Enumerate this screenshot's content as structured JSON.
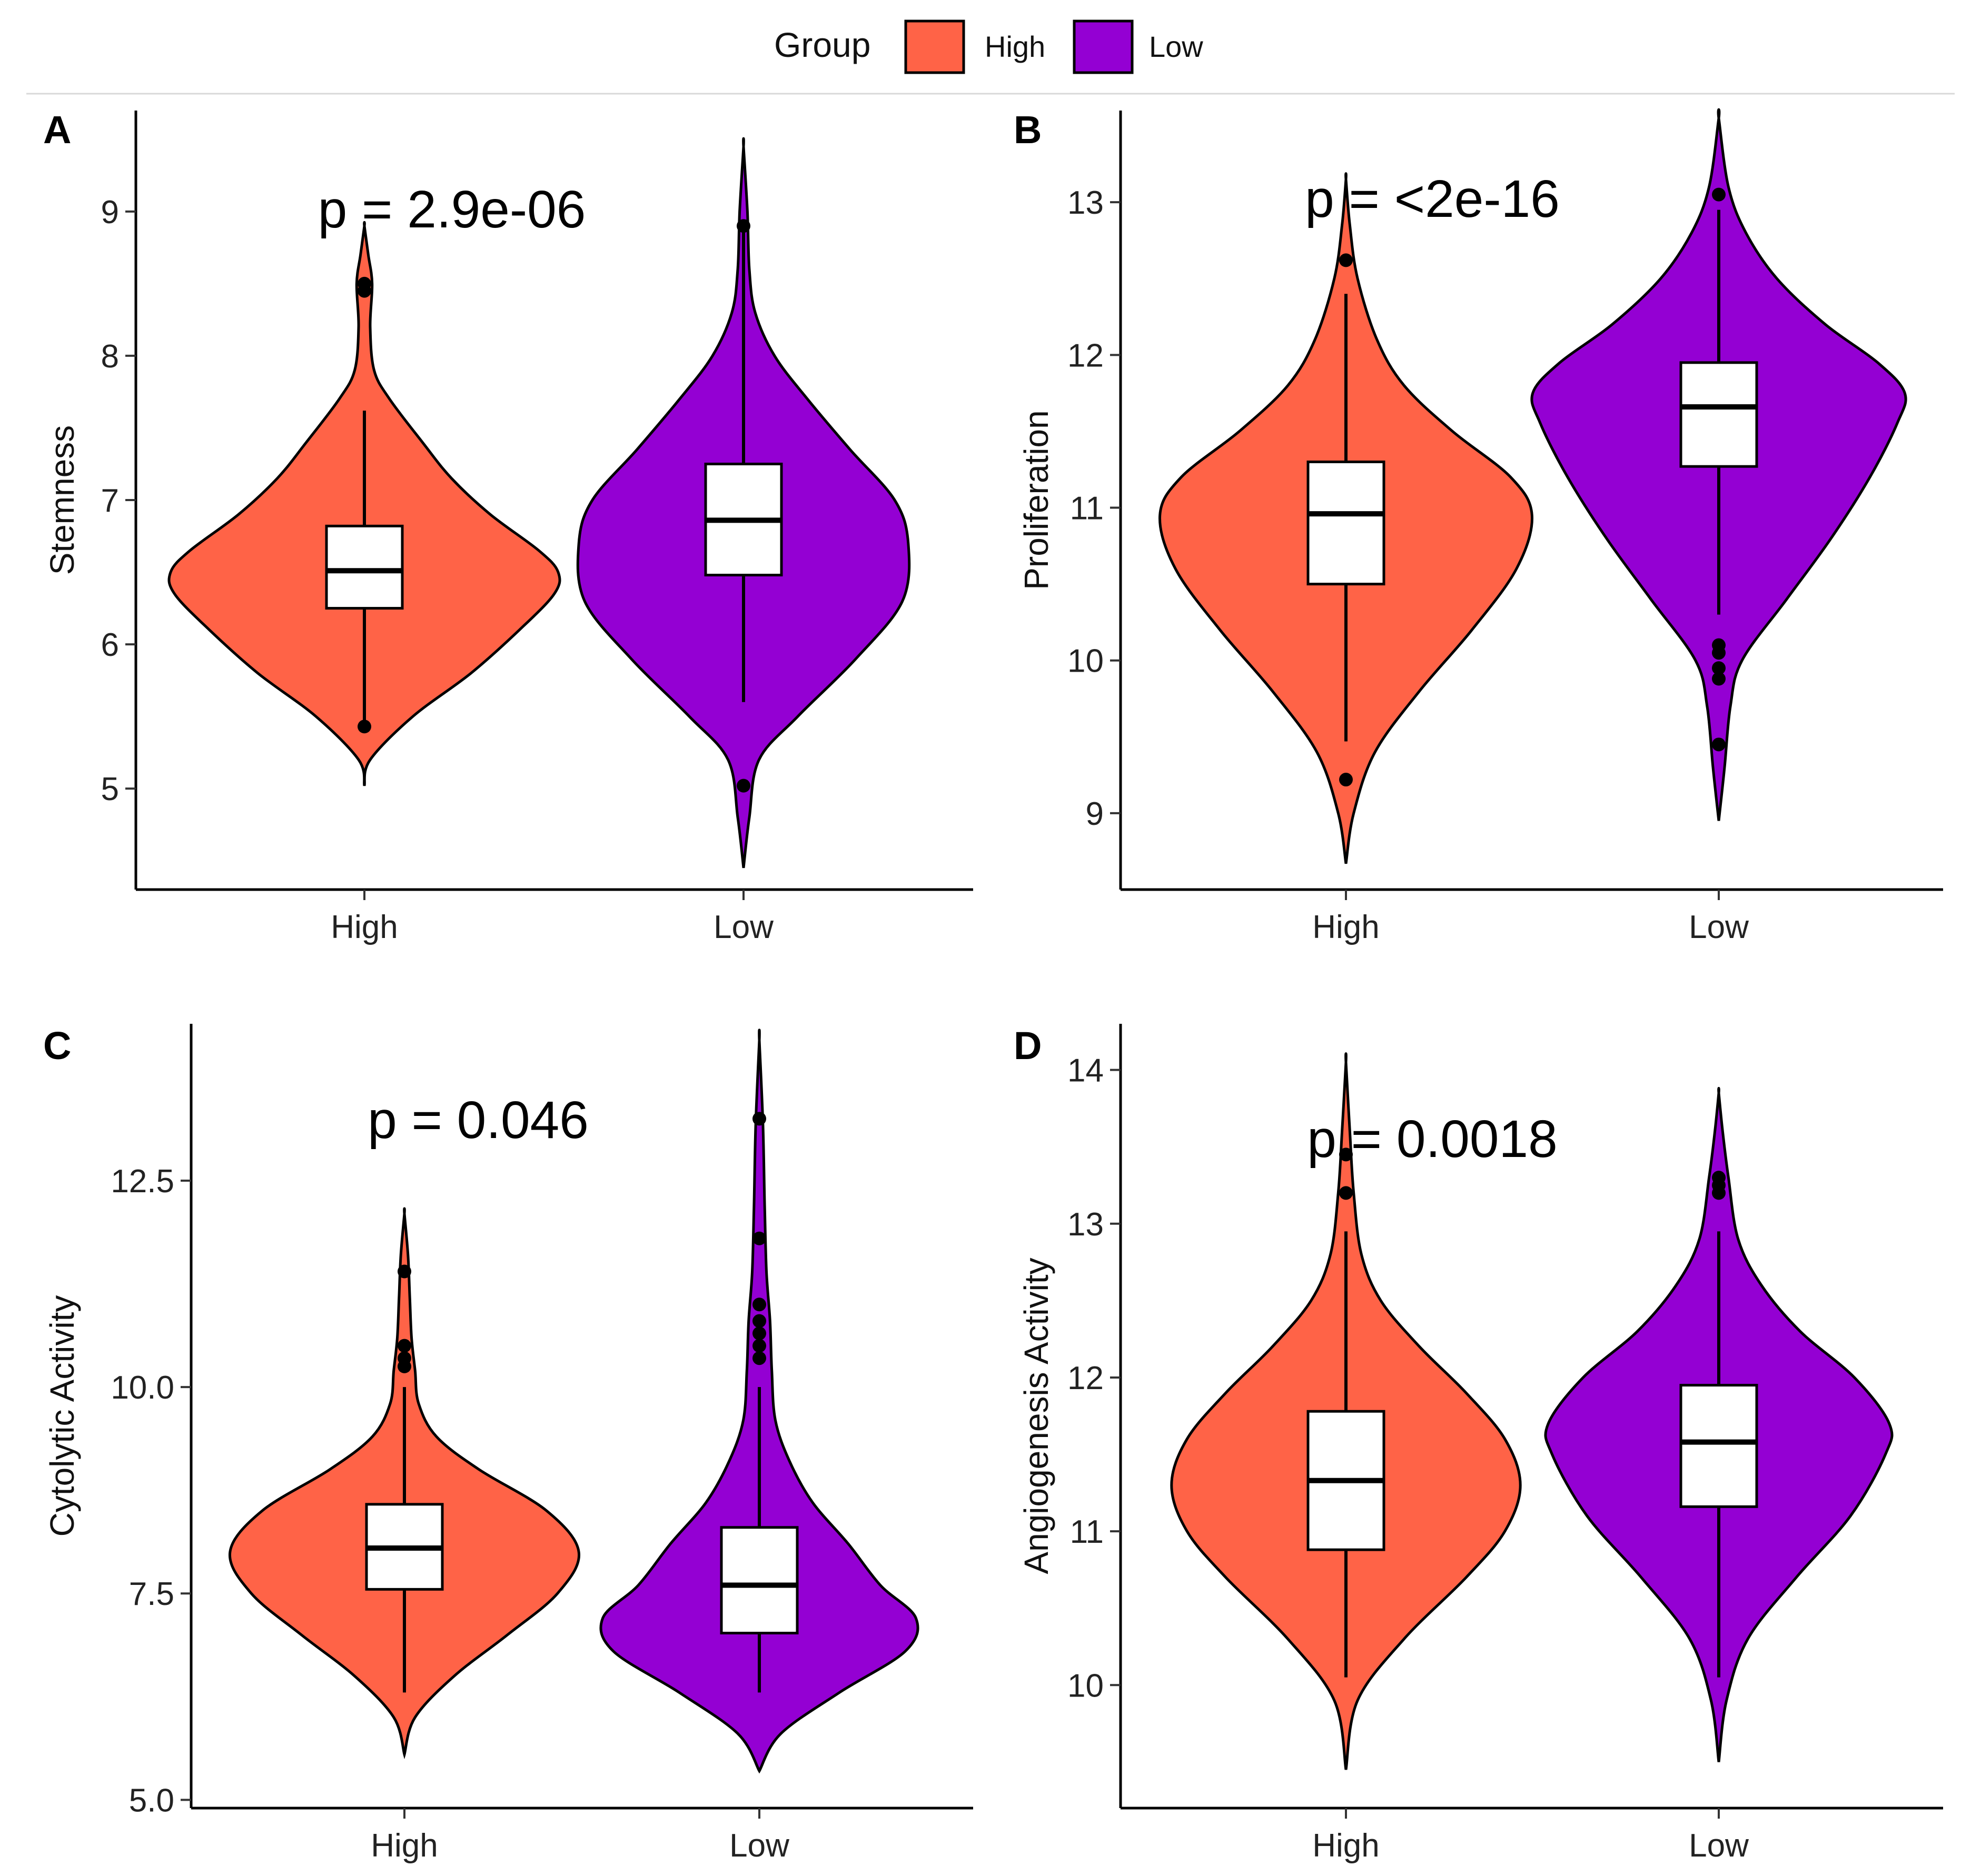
{
  "legend": {
    "title": "Group",
    "items": [
      {
        "label": "High",
        "color": "#FF6347"
      },
      {
        "label": "Low",
        "color": "#9400D3"
      }
    ]
  },
  "chart_data": [
    {
      "type": "violin",
      "panel": "A",
      "ylabel": "Stemness",
      "ylim": [
        4.3,
        9.7
      ],
      "yticks": [
        "5",
        "6",
        "7",
        "8",
        "9"
      ],
      "p_label": "p = 2.9e-06",
      "categories": [
        "High",
        "Low"
      ],
      "series": [
        {
          "name": "High",
          "color": "#FF6347",
          "box": {
            "q1": 6.25,
            "median": 6.51,
            "q3": 6.82,
            "whisker_low": 5.43,
            "whisker_high": 7.62
          },
          "outliers": [
            5.43,
            8.45,
            8.5
          ],
          "violin": [
            [
              5.02,
              0
            ],
            [
              5.2,
              0.03
            ],
            [
              5.5,
              0.25
            ],
            [
              5.8,
              0.55
            ],
            [
              6.1,
              0.8
            ],
            [
              6.35,
              0.98
            ],
            [
              6.5,
              1.0
            ],
            [
              6.65,
              0.9
            ],
            [
              6.9,
              0.65
            ],
            [
              7.15,
              0.45
            ],
            [
              7.4,
              0.3
            ],
            [
              7.7,
              0.13
            ],
            [
              7.9,
              0.05
            ],
            [
              8.2,
              0.03
            ],
            [
              8.5,
              0.04
            ],
            [
              8.7,
              0.02
            ],
            [
              8.9,
              0
            ]
          ]
        },
        {
          "name": "Low",
          "color": "#9400D3",
          "box": {
            "q1": 6.48,
            "median": 6.86,
            "q3": 7.25,
            "whisker_low": 5.6,
            "whisker_high": 8.9
          },
          "outliers": [
            5.02,
            8.9
          ],
          "violin": [
            [
              4.45,
              0
            ],
            [
              4.8,
              0.03
            ],
            [
              5.2,
              0.08
            ],
            [
              5.5,
              0.28
            ],
            [
              5.9,
              0.58
            ],
            [
              6.3,
              0.82
            ],
            [
              6.7,
              0.85
            ],
            [
              7.0,
              0.78
            ],
            [
              7.35,
              0.55
            ],
            [
              7.7,
              0.33
            ],
            [
              8.0,
              0.16
            ],
            [
              8.3,
              0.06
            ],
            [
              8.6,
              0.03
            ],
            [
              9.0,
              0.02
            ],
            [
              9.45,
              0
            ]
          ]
        }
      ]
    },
    {
      "type": "violin",
      "panel": "B",
      "ylabel": "Proliferation",
      "ylim": [
        8.5,
        13.6
      ],
      "yticks": [
        "9",
        "10",
        "11",
        "12",
        "13"
      ],
      "p_label": "p = <2e-16",
      "categories": [
        "High",
        "Low"
      ],
      "series": [
        {
          "name": "High",
          "color": "#FF6347",
          "box": {
            "q1": 10.5,
            "median": 10.96,
            "q3": 11.3,
            "whisker_low": 9.47,
            "whisker_high": 12.4
          },
          "outliers": [
            9.22,
            12.62
          ],
          "violin": [
            [
              8.67,
              0
            ],
            [
              9.0,
              0.04
            ],
            [
              9.4,
              0.15
            ],
            [
              9.8,
              0.38
            ],
            [
              10.2,
              0.65
            ],
            [
              10.6,
              0.88
            ],
            [
              10.95,
              0.96
            ],
            [
              11.2,
              0.85
            ],
            [
              11.5,
              0.55
            ],
            [
              11.8,
              0.3
            ],
            [
              12.1,
              0.16
            ],
            [
              12.5,
              0.06
            ],
            [
              12.85,
              0.02
            ],
            [
              13.15,
              0
            ]
          ]
        },
        {
          "name": "Low",
          "color": "#9400D3",
          "box": {
            "q1": 11.27,
            "median": 11.66,
            "q3": 11.95,
            "whisker_low": 10.3,
            "whisker_high": 12.95
          },
          "outliers": [
            9.45,
            9.88,
            9.95,
            10.05,
            10.1,
            13.05
          ],
          "violin": [
            [
              8.95,
              0
            ],
            [
              9.3,
              0.03
            ],
            [
              9.7,
              0.06
            ],
            [
              10.0,
              0.12
            ],
            [
              10.4,
              0.35
            ],
            [
              10.8,
              0.58
            ],
            [
              11.2,
              0.78
            ],
            [
              11.55,
              0.92
            ],
            [
              11.75,
              0.96
            ],
            [
              11.95,
              0.82
            ],
            [
              12.2,
              0.55
            ],
            [
              12.5,
              0.3
            ],
            [
              12.8,
              0.14
            ],
            [
              13.1,
              0.05
            ],
            [
              13.55,
              0
            ]
          ]
        }
      ]
    },
    {
      "type": "violin",
      "panel": "C",
      "ylabel": "Cytolytic Activity",
      "ylim": [
        4.9,
        14.4
      ],
      "yticks": [
        "5.0",
        "7.5",
        "10.0",
        "12.5"
      ],
      "p_label": "p = 0.046",
      "categories": [
        "High",
        "Low"
      ],
      "series": [
        {
          "name": "High",
          "color": "#FF6347",
          "box": {
            "q1": 7.55,
            "median": 8.05,
            "q3": 8.58,
            "whisker_low": 6.3,
            "whisker_high": 10.0
          },
          "outliers": [
            10.25,
            10.35,
            10.5,
            11.4
          ],
          "violin": [
            [
              5.55,
              0
            ],
            [
              6.0,
              0.06
            ],
            [
              6.5,
              0.28
            ],
            [
              7.0,
              0.58
            ],
            [
              7.5,
              0.86
            ],
            [
              8.0,
              0.98
            ],
            [
              8.5,
              0.8
            ],
            [
              9.0,
              0.42
            ],
            [
              9.4,
              0.18
            ],
            [
              9.8,
              0.08
            ],
            [
              10.2,
              0.06
            ],
            [
              10.6,
              0.04
            ],
            [
              11.1,
              0.03
            ],
            [
              11.6,
              0.02
            ],
            [
              12.1,
              0
            ]
          ]
        },
        {
          "name": "Low",
          "color": "#9400D3",
          "box": {
            "q1": 7.02,
            "median": 7.6,
            "q3": 8.3,
            "whisker_low": 6.3,
            "whisker_high": 10.0
          },
          "outliers": [
            10.35,
            10.5,
            10.65,
            10.8,
            11.0,
            11.8,
            13.25
          ],
          "violin": [
            [
              5.35,
              0
            ],
            [
              5.8,
              0.12
            ],
            [
              6.3,
              0.45
            ],
            [
              6.8,
              0.82
            ],
            [
              7.2,
              0.88
            ],
            [
              7.6,
              0.68
            ],
            [
              8.1,
              0.5
            ],
            [
              8.6,
              0.3
            ],
            [
              9.1,
              0.17
            ],
            [
              9.6,
              0.09
            ],
            [
              10.2,
              0.07
            ],
            [
              10.8,
              0.06
            ],
            [
              11.4,
              0.04
            ],
            [
              12.2,
              0.03
            ],
            [
              13.2,
              0.02
            ],
            [
              14.2,
              0
            ]
          ]
        }
      ]
    },
    {
      "type": "violin",
      "panel": "D",
      "ylabel": "Angiogenesis Activity",
      "ylim": [
        9.2,
        14.3
      ],
      "yticks": [
        "10",
        "11",
        "12",
        "13",
        "14"
      ],
      "p_label": "p = 0.0018",
      "categories": [
        "High",
        "Low"
      ],
      "series": [
        {
          "name": "High",
          "color": "#FF6347",
          "box": {
            "q1": 10.88,
            "median": 11.33,
            "q3": 11.78,
            "whisker_low": 10.05,
            "whisker_high": 12.95
          },
          "outliers": [
            13.2,
            13.45
          ],
          "violin": [
            [
              9.45,
              0
            ],
            [
              9.9,
              0.06
            ],
            [
              10.3,
              0.3
            ],
            [
              10.7,
              0.62
            ],
            [
              11.0,
              0.82
            ],
            [
              11.3,
              0.9
            ],
            [
              11.6,
              0.82
            ],
            [
              11.9,
              0.62
            ],
            [
              12.2,
              0.38
            ],
            [
              12.5,
              0.18
            ],
            [
              12.8,
              0.08
            ],
            [
              13.2,
              0.04
            ],
            [
              13.6,
              0.02
            ],
            [
              14.05,
              0
            ]
          ]
        },
        {
          "name": "Low",
          "color": "#9400D3",
          "box": {
            "q1": 11.16,
            "median": 11.58,
            "q3": 11.95,
            "whisker_low": 10.05,
            "whisker_high": 12.95
          },
          "outliers": [
            13.2,
            13.25,
            13.3
          ],
          "violin": [
            [
              9.5,
              0
            ],
            [
              9.9,
              0.04
            ],
            [
              10.3,
              0.15
            ],
            [
              10.7,
              0.4
            ],
            [
              11.1,
              0.68
            ],
            [
              11.5,
              0.86
            ],
            [
              11.7,
              0.88
            ],
            [
              12.0,
              0.7
            ],
            [
              12.3,
              0.42
            ],
            [
              12.6,
              0.22
            ],
            [
              12.9,
              0.1
            ],
            [
              13.3,
              0.05
            ],
            [
              13.6,
              0.02
            ],
            [
              13.85,
              0
            ]
          ]
        }
      ]
    }
  ]
}
